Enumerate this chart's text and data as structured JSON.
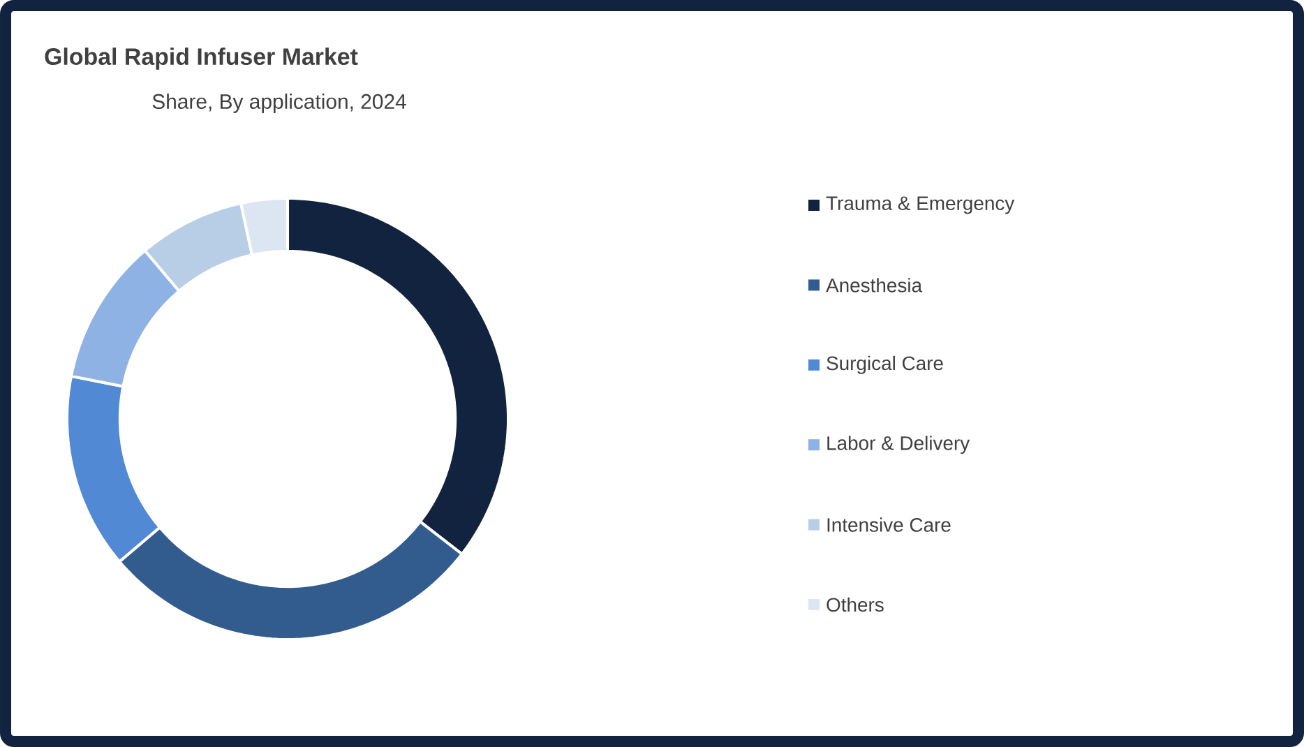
{
  "chart_data": {
    "type": "donut",
    "title": "Global Rapid Infuser Market",
    "subtitle": "Share, By application, 2024",
    "categories": [
      "Trauma & Emergency",
      "Anesthesia",
      "Surgical Care",
      "Labor & Delivery",
      "Intensive Care",
      "Others"
    ],
    "values": [
      35.5,
      28.3,
      14.3,
      10.7,
      7.8,
      3.4
    ],
    "colors": [
      "#12233f",
      "#335c8e",
      "#5189d4",
      "#8db2e3",
      "#b8cde6",
      "#dce5f2"
    ],
    "legend": "right"
  }
}
